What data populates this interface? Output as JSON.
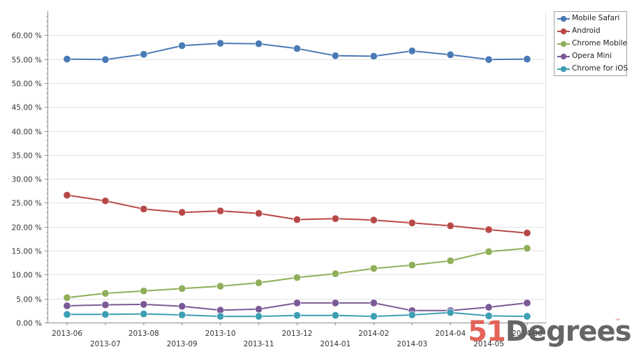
{
  "chart_data": {
    "type": "line",
    "title": "",
    "xlabel": "",
    "ylabel": "",
    "ylim": [
      0,
      65
    ],
    "y_ticks": [
      "0.00 %",
      "5.00 %",
      "10.00 %",
      "15.00 %",
      "20.00 %",
      "25.00 %",
      "30.00 %",
      "35.00 %",
      "40.00 %",
      "45.00 %",
      "50.00 %",
      "55.00 %",
      "60.00 %"
    ],
    "grid": "horizontal",
    "legend_position": "top-right",
    "categories": [
      "2013-06",
      "2013-07",
      "2013-08",
      "2013-09",
      "2013-10",
      "2013-11",
      "2013-12",
      "2014-01",
      "2014-02",
      "2014-03",
      "2014-04",
      "2014-05",
      "2014-06"
    ],
    "series": [
      {
        "name": "Mobile Safari",
        "color": "#4a7ab5",
        "values": [
          55.0,
          54.9,
          56.0,
          57.8,
          58.3,
          58.2,
          57.2,
          55.7,
          55.6,
          56.7,
          55.9,
          54.9,
          55.0
        ]
      },
      {
        "name": "Android",
        "color": "#b84848",
        "values": [
          26.6,
          25.4,
          23.7,
          23.0,
          23.3,
          22.8,
          21.5,
          21.7,
          21.4,
          20.8,
          20.2,
          19.4,
          18.7
        ]
      },
      {
        "name": "Chrome Mobile",
        "color": "#8faf5a",
        "values": [
          5.2,
          6.1,
          6.6,
          7.1,
          7.6,
          8.3,
          9.4,
          10.2,
          11.3,
          12.0,
          12.9,
          14.8,
          15.5
        ]
      },
      {
        "name": "Opera Mini",
        "color": "#7a5a96",
        "values": [
          3.5,
          3.7,
          3.8,
          3.4,
          2.6,
          2.8,
          4.1,
          4.1,
          4.1,
          2.5,
          2.5,
          3.2,
          4.1
        ]
      },
      {
        "name": "Chrome for iOS",
        "color": "#3d9fb3",
        "values": [
          1.7,
          1.7,
          1.8,
          1.6,
          1.3,
          1.3,
          1.5,
          1.5,
          1.3,
          1.6,
          2.1,
          1.4,
          1.3
        ]
      }
    ]
  },
  "branding": {
    "number": "51",
    "word": "Degrees",
    "tm": "™"
  }
}
